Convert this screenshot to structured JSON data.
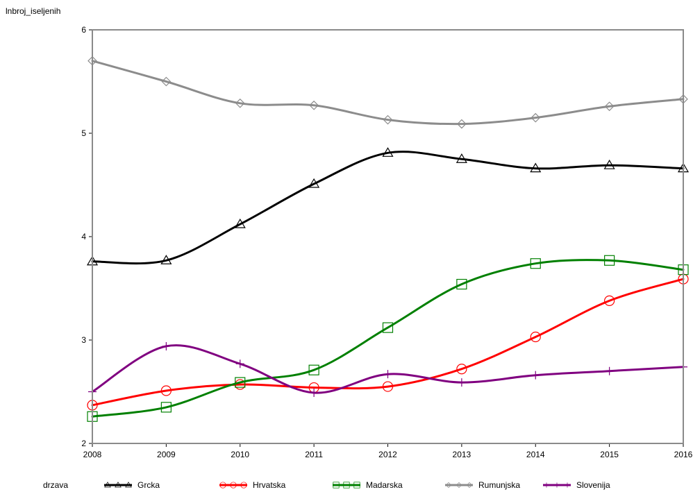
{
  "chart_data": {
    "type": "line",
    "ylabel": "lnbroj_iseljenih",
    "legend_title": "drzava",
    "legend_position": "bottom",
    "grid": false,
    "x": [
      2008,
      2009,
      2010,
      2011,
      2012,
      2013,
      2014,
      2015,
      2016
    ],
    "xlim": [
      2008,
      2016
    ],
    "ylim": [
      2,
      6
    ],
    "x_ticks": [
      "2008",
      "2009",
      "2010",
      "2011",
      "2012",
      "2013",
      "2014",
      "2015",
      "2016"
    ],
    "y_ticks": [
      "2",
      "3",
      "4",
      "5",
      "6"
    ],
    "series": [
      {
        "name": "Grcka",
        "color": "#000000",
        "marker": "triangle",
        "values": [
          3.76,
          3.77,
          4.12,
          4.51,
          4.81,
          4.75,
          4.66,
          4.69,
          4.66
        ]
      },
      {
        "name": "Hrvatska",
        "color": "#ff0000",
        "marker": "circle",
        "values": [
          2.37,
          2.51,
          2.57,
          2.54,
          2.55,
          2.72,
          3.03,
          3.38,
          3.59
        ]
      },
      {
        "name": "Madarska",
        "color": "#008000",
        "marker": "square",
        "values": [
          2.26,
          2.35,
          2.59,
          2.71,
          3.12,
          3.54,
          3.74,
          3.77,
          3.68
        ]
      },
      {
        "name": "Rumunjska",
        "color": "#8c8c8c",
        "marker": "diamond",
        "values": [
          5.7,
          5.5,
          5.29,
          5.27,
          5.13,
          5.09,
          5.15,
          5.26,
          5.33
        ]
      },
      {
        "name": "Slovenija",
        "color": "#800080",
        "marker": "plus",
        "values": [
          2.5,
          2.94,
          2.77,
          2.49,
          2.67,
          2.59,
          2.66,
          2.7,
          2.74
        ]
      }
    ]
  }
}
